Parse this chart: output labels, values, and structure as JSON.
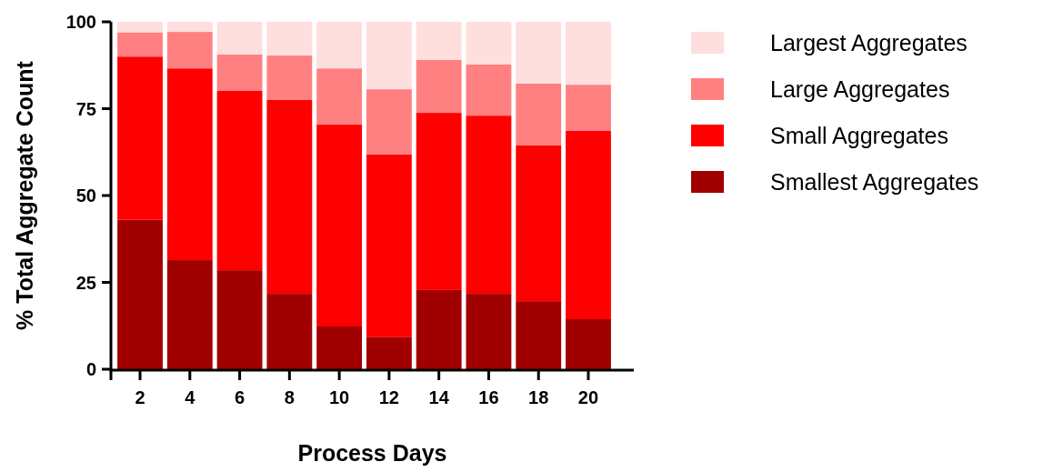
{
  "chart_data": {
    "type": "bar",
    "stacked": true,
    "xlabel": "Process Days",
    "ylabel": "% Total Aggregate Count",
    "categories": [
      "2",
      "4",
      "6",
      "8",
      "10",
      "12",
      "14",
      "16",
      "18",
      "20"
    ],
    "series": [
      {
        "name": "Smallest Aggregates",
        "color": "#a00000",
        "values": [
          43,
          31.4,
          28.5,
          21.7,
          12.3,
          9.2,
          22.8,
          21.7,
          19.6,
          14.4
        ]
      },
      {
        "name": "Small Aggregates",
        "color": "#ff0000",
        "values": [
          47,
          55.2,
          51.6,
          55.8,
          58.1,
          52.6,
          51,
          51.3,
          44.8,
          54.2
        ]
      },
      {
        "name": "Large Aggregates",
        "color": "#ff8080",
        "values": [
          7,
          10.5,
          10.5,
          12.8,
          16.2,
          18.8,
          15.2,
          14.7,
          17.8,
          13.3
        ]
      },
      {
        "name": "Largest Aggregates",
        "color": "#ffdede",
        "values": [
          3,
          2.9,
          9.4,
          9.7,
          13.4,
          19.4,
          11,
          12.3,
          17.8,
          18.1
        ]
      }
    ],
    "ylim": [
      0,
      100
    ],
    "yticks": [
      0,
      25,
      50,
      75,
      100
    ],
    "grid": false,
    "legend": "right"
  }
}
